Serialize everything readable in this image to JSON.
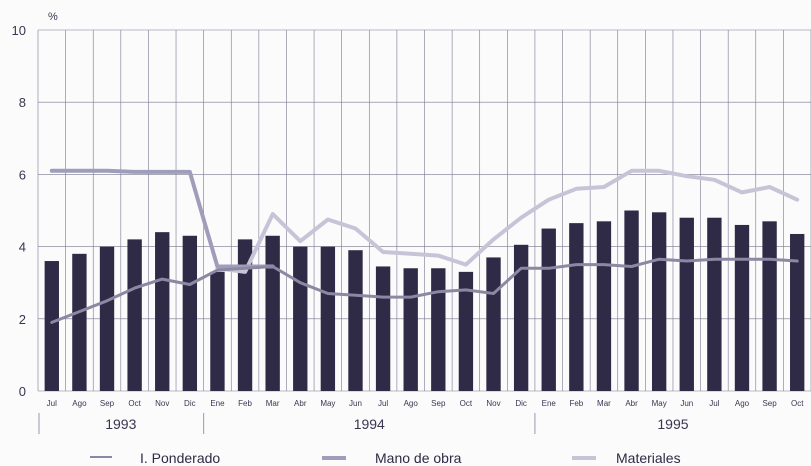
{
  "chart_data": {
    "type": "bar",
    "y_unit": "%",
    "ylim": [
      0,
      10
    ],
    "yticks": [
      0,
      2,
      4,
      6,
      8,
      10
    ],
    "grid": true,
    "legend_position": "bottom",
    "categories": [
      "Jul",
      "Ago",
      "Sep",
      "Oct",
      "Nov",
      "Dic",
      "Ene",
      "Feb",
      "Mar",
      "Abr",
      "May",
      "Jun",
      "Jul",
      "Ago",
      "Sep",
      "Oct",
      "Nov",
      "Dic",
      "Ene",
      "Feb",
      "Mar",
      "Abr",
      "May",
      "Jun",
      "Jul",
      "Ago",
      "Sep",
      "Oct"
    ],
    "years": [
      {
        "label": "1993",
        "start": 0,
        "end": 5
      },
      {
        "label": "1994",
        "start": 6,
        "end": 17
      },
      {
        "label": "1995",
        "start": 18,
        "end": 27
      }
    ],
    "bars": {
      "name": "",
      "values": [
        3.6,
        3.8,
        4.0,
        4.2,
        4.4,
        4.3,
        3.3,
        4.2,
        4.3,
        4.0,
        4.0,
        3.9,
        3.45,
        3.4,
        3.4,
        3.3,
        3.7,
        4.05,
        4.5,
        4.65,
        4.7,
        5.0,
        4.95,
        4.8,
        4.8,
        4.6,
        4.7,
        4.35
      ],
      "color": "#2f2a45"
    },
    "series": [
      {
        "name": "I. Ponderado",
        "values": [
          1.9,
          2.2,
          2.5,
          2.85,
          3.1,
          2.95,
          3.35,
          3.4,
          3.45,
          3.0,
          2.7,
          2.65,
          2.6,
          2.6,
          2.75,
          2.8,
          2.7,
          3.4,
          3.4,
          3.5,
          3.5,
          3.45,
          3.65,
          3.6,
          3.65,
          3.65,
          3.65,
          3.6
        ],
        "color": "#8b88a3"
      },
      {
        "name": "Mano de obra",
        "values": [
          6.1,
          6.1,
          6.1,
          6.07,
          6.07,
          6.07,
          3.45,
          3.45,
          3.45,
          null,
          null,
          null,
          null,
          null,
          null,
          null,
          null,
          null,
          null,
          null,
          null,
          null,
          null,
          null,
          null,
          null,
          null,
          null
        ],
        "color": "#a09dbb"
      },
      {
        "name": "Materiales",
        "values": [
          null,
          null,
          null,
          null,
          null,
          null,
          3.4,
          3.3,
          4.9,
          4.15,
          4.75,
          4.5,
          3.85,
          3.8,
          3.75,
          3.5,
          4.2,
          4.8,
          5.3,
          5.6,
          5.65,
          6.1,
          6.1,
          5.95,
          5.85,
          5.5,
          5.65,
          5.3
        ],
        "color": "#c6c4d6"
      }
    ]
  }
}
